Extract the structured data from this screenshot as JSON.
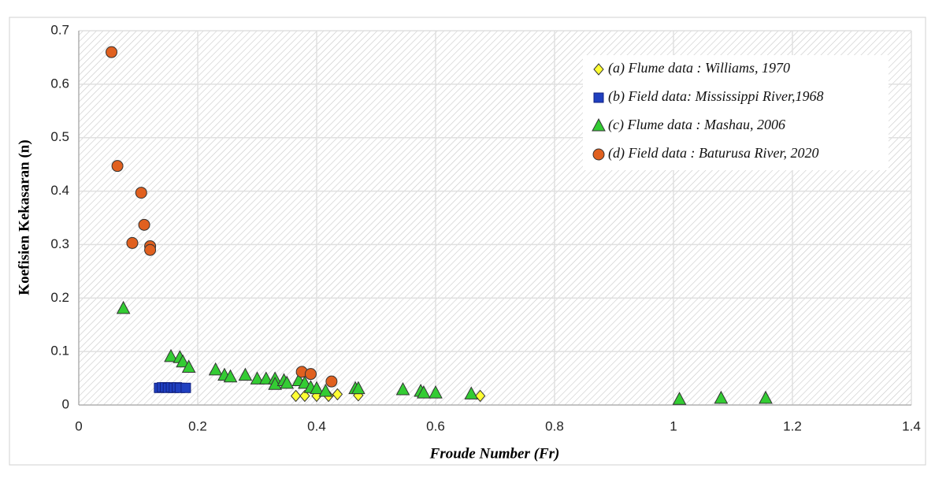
{
  "chart_data": {
    "type": "scatter",
    "x_label": "Froude Number (Fr)",
    "y_label": "Koefisien Kekasaran (n)",
    "xlim": [
      0,
      1.4
    ],
    "ylim": [
      0,
      0.7
    ],
    "xticks": [
      0,
      0.2,
      0.4,
      0.6,
      0.8,
      1,
      1.2,
      1.4
    ],
    "yticks": [
      0,
      0.1,
      0.2,
      0.3,
      0.4,
      0.5,
      0.6,
      0.7
    ],
    "grid": true,
    "legend": "top-right",
    "series": [
      {
        "name": "(a) Flume data : Williams, 1970",
        "color": "#ffff33",
        "marker": "diamond",
        "x": [
          0.365,
          0.38,
          0.4,
          0.42,
          0.435,
          0.47,
          0.675
        ],
        "values": [
          0.017,
          0.017,
          0.017,
          0.017,
          0.02,
          0.018,
          0.017
        ]
      },
      {
        "name": "(b) Field data: Mississippi River,1968",
        "color": "#1f3fbf",
        "marker": "square",
        "x": [
          0.135,
          0.14,
          0.145,
          0.15,
          0.155,
          0.16,
          0.165,
          0.17,
          0.18
        ],
        "values": [
          0.032,
          0.033,
          0.033,
          0.032,
          0.033,
          0.032,
          0.033,
          0.032,
          0.032
        ]
      },
      {
        "name": "(c) Flume data : Mashau, 2006",
        "color": "#33cc33",
        "marker": "triangle",
        "x": [
          0.075,
          0.155,
          0.17,
          0.175,
          0.185,
          0.23,
          0.245,
          0.255,
          0.28,
          0.3,
          0.315,
          0.33,
          0.33,
          0.345,
          0.35,
          0.37,
          0.38,
          0.39,
          0.4,
          0.415,
          0.465,
          0.47,
          0.545,
          0.575,
          0.58,
          0.6,
          0.66,
          1.01,
          1.08,
          1.155
        ],
        "values": [
          0.18,
          0.09,
          0.088,
          0.08,
          0.07,
          0.065,
          0.055,
          0.052,
          0.055,
          0.048,
          0.048,
          0.048,
          0.038,
          0.045,
          0.04,
          0.045,
          0.04,
          0.032,
          0.03,
          0.025,
          0.03,
          0.03,
          0.028,
          0.025,
          0.022,
          0.022,
          0.02,
          0.01,
          0.012,
          0.012
        ]
      },
      {
        "name": "(d) Field data : Baturusa River, 2020",
        "color": "#e0601f",
        "marker": "circle",
        "x": [
          0.055,
          0.065,
          0.105,
          0.11,
          0.09,
          0.12,
          0.12,
          0.375,
          0.39,
          0.425
        ],
        "values": [
          0.66,
          0.447,
          0.397,
          0.337,
          0.303,
          0.297,
          0.29,
          0.062,
          0.058,
          0.044
        ]
      }
    ]
  }
}
